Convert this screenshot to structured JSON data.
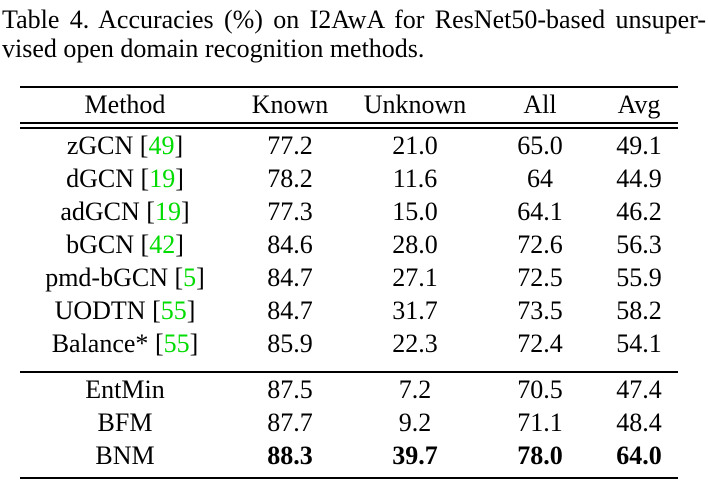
{
  "caption": {
    "line1": "Table 4. Accuracies (%) on I2AwA for ResNet50-based unsuper-",
    "line2": "vised open domain recognition methods."
  },
  "colors": {
    "citation_green": "#00DC00",
    "text": "#000000",
    "background": "#FFFFFF"
  },
  "table": {
    "headers": [
      "Method",
      "Known",
      "Unknown",
      "All",
      "Avg"
    ],
    "rows": [
      {
        "method": "zGCN",
        "cite": "49",
        "values": [
          "77.2",
          "21.0",
          "65.0",
          "49.1"
        ],
        "section": 1,
        "bold_values": false
      },
      {
        "method": "dGCN",
        "cite": "19",
        "values": [
          "78.2",
          "11.6",
          "64",
          "44.9"
        ],
        "section": 1,
        "bold_values": false
      },
      {
        "method": "adGCN",
        "cite": "19",
        "values": [
          "77.3",
          "15.0",
          "64.1",
          "46.2"
        ],
        "section": 1,
        "bold_values": false
      },
      {
        "method": "bGCN",
        "cite": "42",
        "values": [
          "84.6",
          "28.0",
          "72.6",
          "56.3"
        ],
        "section": 1,
        "bold_values": false
      },
      {
        "method": "pmd-bGCN",
        "cite": "5",
        "values": [
          "84.7",
          "27.1",
          "72.5",
          "55.9"
        ],
        "section": 1,
        "bold_values": false
      },
      {
        "method": "UODTN",
        "cite": "55",
        "values": [
          "84.7",
          "31.7",
          "73.5",
          "58.2"
        ],
        "section": 1,
        "bold_values": false
      },
      {
        "method": "Balance*",
        "cite": "55",
        "values": [
          "85.9",
          "22.3",
          "72.4",
          "54.1"
        ],
        "section": 1,
        "bold_values": false
      },
      {
        "method": "EntMin",
        "cite": null,
        "values": [
          "87.5",
          "7.2",
          "70.5",
          "47.4"
        ],
        "section": 2,
        "bold_values": false
      },
      {
        "method": "BFM",
        "cite": null,
        "values": [
          "87.7",
          "9.2",
          "71.1",
          "48.4"
        ],
        "section": 2,
        "bold_values": false
      },
      {
        "method": "BNM",
        "cite": null,
        "values": [
          "88.3",
          "39.7",
          "78.0",
          "64.0"
        ],
        "section": 2,
        "bold_values": true
      }
    ]
  }
}
